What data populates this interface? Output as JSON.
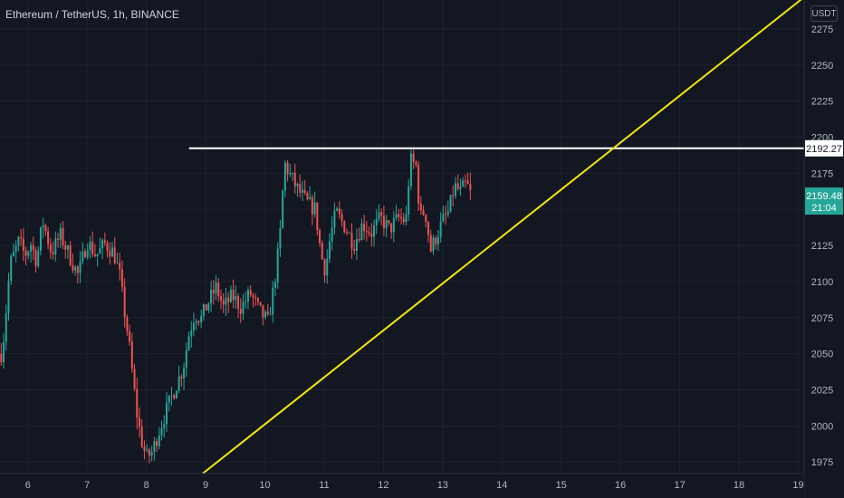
{
  "header": {
    "title": "Ethereum / TetherUS, 1h, BINANCE",
    "currency": "USDT"
  },
  "colors": {
    "background": "#131722",
    "up": "#26a69a",
    "down": "#ef5350",
    "grid": "#1e222d",
    "trendline": "#f5e60a",
    "level": "#ffffff",
    "price_tag": "#26a69a"
  },
  "chart_data": {
    "type": "candlestick",
    "title": "Ethereum / TetherUS, 1h, BINANCE",
    "xlabel": "",
    "ylabel": "",
    "x_ticks": [
      "6",
      "7",
      "8",
      "9",
      "10",
      "11",
      "12",
      "13",
      "14",
      "15",
      "16",
      "17",
      "18",
      "19"
    ],
    "y_ticks": [
      1975,
      2000,
      2025,
      2050,
      2075,
      2100,
      2125,
      2150,
      2175,
      2200,
      2225,
      2250,
      2275
    ],
    "xlim": [
      5.53,
      19.1
    ],
    "ylim": [
      1967,
      2295
    ],
    "grid": true,
    "price_path": [
      [
        5.55,
        2050
      ],
      [
        5.6,
        2064
      ],
      [
        5.7,
        2112
      ],
      [
        5.85,
        2128
      ],
      [
        5.95,
        2118
      ],
      [
        6.05,
        2126
      ],
      [
        6.15,
        2114
      ],
      [
        6.25,
        2142
      ],
      [
        6.4,
        2120
      ],
      [
        6.55,
        2132
      ],
      [
        6.7,
        2118
      ],
      [
        6.85,
        2104
      ],
      [
        7.0,
        2128
      ],
      [
        7.15,
        2118
      ],
      [
        7.3,
        2126
      ],
      [
        7.45,
        2120
      ],
      [
        7.55,
        2104
      ],
      [
        7.62,
        2082
      ],
      [
        7.7,
        2060
      ],
      [
        7.78,
        2030
      ],
      [
        7.85,
        2005
      ],
      [
        7.92,
        1990
      ],
      [
        8.0,
        1978
      ],
      [
        8.1,
        1982
      ],
      [
        8.2,
        1995
      ],
      [
        8.35,
        2012
      ],
      [
        8.5,
        2028
      ],
      [
        8.62,
        2040
      ],
      [
        8.72,
        2064
      ],
      [
        8.82,
        2078
      ],
      [
        8.92,
        2074
      ],
      [
        9.05,
        2086
      ],
      [
        9.18,
        2096
      ],
      [
        9.3,
        2082
      ],
      [
        9.45,
        2090
      ],
      [
        9.6,
        2082
      ],
      [
        9.75,
        2092
      ],
      [
        9.9,
        2080
      ],
      [
        10.05,
        2072
      ],
      [
        10.15,
        2096
      ],
      [
        10.25,
        2128
      ],
      [
        10.33,
        2182
      ],
      [
        10.42,
        2174
      ],
      [
        10.55,
        2164
      ],
      [
        10.7,
        2155
      ],
      [
        10.85,
        2150
      ],
      [
        10.95,
        2118
      ],
      [
        11.02,
        2108
      ],
      [
        11.1,
        2130
      ],
      [
        11.2,
        2148
      ],
      [
        11.35,
        2138
      ],
      [
        11.5,
        2126
      ],
      [
        11.65,
        2140
      ],
      [
        11.8,
        2134
      ],
      [
        11.95,
        2144
      ],
      [
        12.1,
        2136
      ],
      [
        12.25,
        2144
      ],
      [
        12.38,
        2142
      ],
      [
        12.45,
        2184
      ],
      [
        12.55,
        2180
      ],
      [
        12.62,
        2144
      ],
      [
        12.7,
        2150
      ],
      [
        12.8,
        2122
      ],
      [
        12.88,
        2130
      ],
      [
        13.0,
        2142
      ],
      [
        13.1,
        2148
      ],
      [
        13.2,
        2166
      ],
      [
        13.3,
        2162
      ],
      [
        13.4,
        2168
      ],
      [
        13.48,
        2159.48
      ]
    ],
    "horizontal_levels": [
      {
        "price": 2192.27,
        "x_start": 8.72,
        "label": "2192.27"
      }
    ],
    "trendlines": [
      {
        "from": [
          8.95,
          1967
        ],
        "to": [
          19.1,
          2297
        ]
      }
    ],
    "last_price": {
      "price": 2159.48,
      "label": "2159.48",
      "countdown": "21:04"
    }
  }
}
